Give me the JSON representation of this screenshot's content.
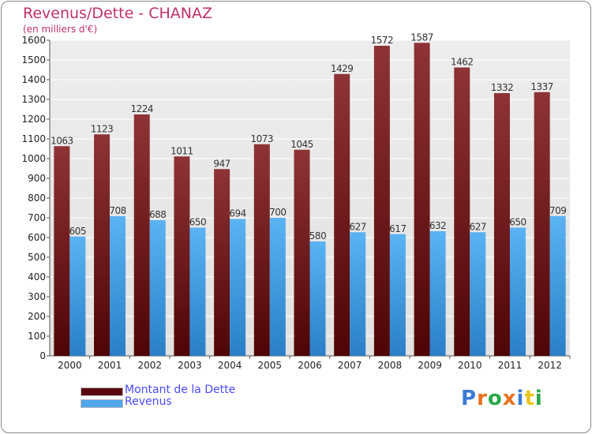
{
  "chart_data": {
    "type": "bar",
    "title": "Revenus/Dette - CHANAZ",
    "subtitle": "(en milliers d'€)",
    "categories": [
      "2000",
      "2001",
      "2002",
      "2003",
      "2004",
      "2005",
      "2006",
      "2007",
      "2008",
      "2009",
      "2010",
      "2011",
      "2012"
    ],
    "series": [
      {
        "name": "Montant de la Dette",
        "color": "#7a1f24",
        "values": [
          1063,
          1123,
          1224,
          1011,
          947,
          1073,
          1045,
          1429,
          1572,
          1587,
          1462,
          1332,
          1337
        ]
      },
      {
        "name": "Revenus",
        "color": "#4fa6ea",
        "values": [
          605,
          708,
          688,
          650,
          694,
          700,
          580,
          627,
          617,
          632,
          627,
          650,
          709
        ]
      }
    ],
    "ylim": [
      0,
      1600
    ],
    "yticks": [
      0,
      100,
      200,
      300,
      400,
      500,
      600,
      700,
      800,
      900,
      1000,
      1100,
      1200,
      1300,
      1400,
      1500,
      1600
    ],
    "grid": true,
    "legend": "bottom-left"
  },
  "logo": {
    "text": "Proxiti",
    "colors": [
      "#3a7bd5",
      "#e8701a",
      "#2aa84a",
      "#e8701a",
      "#3a7bd5",
      "#e8c51a",
      "#2aa84a"
    ]
  }
}
